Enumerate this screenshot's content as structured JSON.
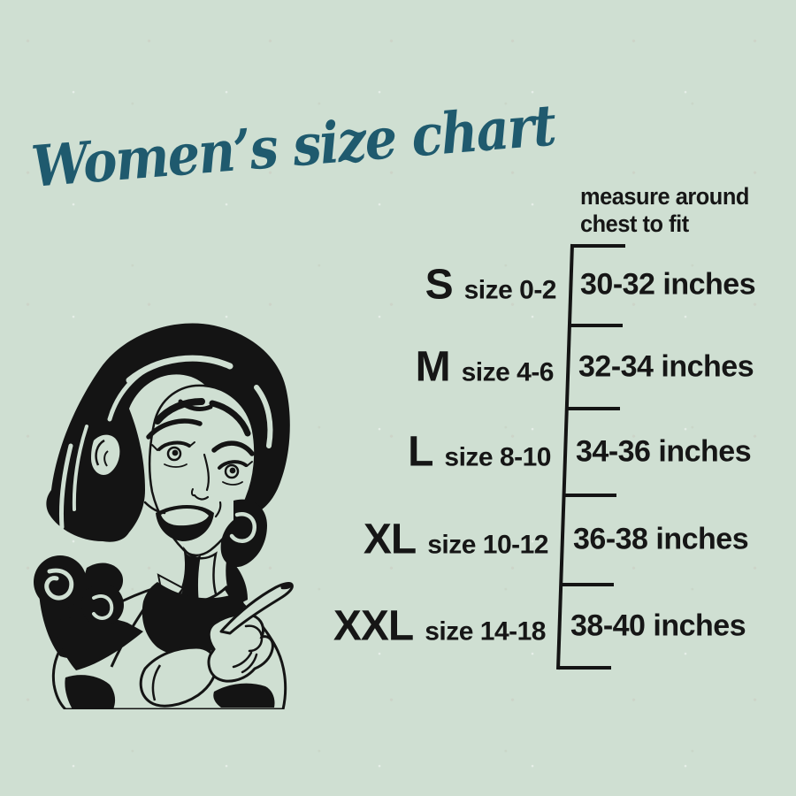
{
  "title": {
    "text": "Women’s size chart",
    "color": "#1f5a6e"
  },
  "measure_note": {
    "line1": "measure around",
    "line2": "chest to fit"
  },
  "size_chart": {
    "rows": [
      {
        "size": "S",
        "size_range": "size 0-2",
        "measurement": "30-32 inches"
      },
      {
        "size": "M",
        "size_range": "size 4-6",
        "measurement": "32-34 inches"
      },
      {
        "size": "L",
        "size_range": "size 8-10",
        "measurement": "34-36 inches"
      },
      {
        "size": "XL",
        "size_range": "size 10-12",
        "measurement": "36-38 inches"
      },
      {
        "size": "XXL",
        "size_range": "size 14-18",
        "measurement": "38-40 inches"
      }
    ]
  },
  "illustration": {
    "description": "retro woman pointing at size chart",
    "style": "black line art"
  },
  "colors": {
    "background": "#cfdfd2",
    "ink": "#161616",
    "title": "#1f5a6e"
  },
  "chart_data": {
    "type": "table",
    "title": "Women's size chart",
    "note": "measure around chest to fit",
    "columns": [
      "size",
      "us_size_range",
      "chest_measurement"
    ],
    "rows": [
      [
        "S",
        "size 0-2",
        "30-32 inches"
      ],
      [
        "M",
        "size 4-6",
        "32-34 inches"
      ],
      [
        "L",
        "size 8-10",
        "34-36 inches"
      ],
      [
        "XL",
        "size 10-12",
        "36-38 inches"
      ],
      [
        "XXL",
        "size 14-18",
        "38-40 inches"
      ]
    ]
  }
}
